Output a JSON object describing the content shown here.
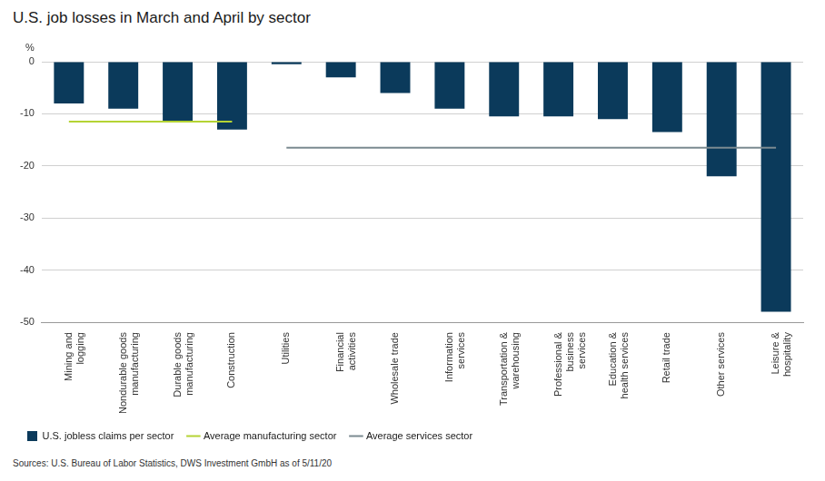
{
  "chart_data": {
    "type": "bar",
    "title": "U.S. job losses in March and April by sector",
    "ylabel": "%",
    "source": "Sources: U.S. Bureau of Labor Statistics, DWS Investment GmbH as of 5/11/20",
    "categories": [
      "Mining and logging",
      "Nondurable goods manufacturing",
      "Durable goods manufacturing",
      "Construction",
      "Utilities",
      "Financial activities",
      "Wholesale trade",
      "Information services",
      "Transportation & warehousing",
      "Professional & business services",
      "Education & health services",
      "Retail trade",
      "Other services",
      "Leisure & hospitality"
    ],
    "series": [
      {
        "name": "U.S. jobless claims per sector",
        "type": "bar",
        "color": "#0b3a5b",
        "values": [
          -8,
          -9,
          -11.5,
          -13,
          -0.5,
          -3,
          -6,
          -9,
          -10.5,
          -10.5,
          -11,
          -13.5,
          -22,
          -48
        ]
      },
      {
        "name": "Average manufacturing sector",
        "type": "line",
        "color": "#b4d334",
        "values": [
          -11.5,
          -11.5,
          -11.5,
          -11.5,
          null,
          null,
          null,
          null,
          null,
          null,
          null,
          null,
          null,
          null
        ]
      },
      {
        "name": "Average services sector",
        "type": "line",
        "color": "#7b8a91",
        "values": [
          null,
          null,
          null,
          null,
          -16.5,
          -16.5,
          -16.5,
          -16.5,
          -16.5,
          -16.5,
          -16.5,
          -16.5,
          -16.5,
          -16.5
        ]
      }
    ],
    "ylim": [
      -50,
      0
    ],
    "yticks": [
      -50,
      -40,
      -30,
      -20,
      -10,
      0
    ],
    "grid": true,
    "legend": "bottom"
  }
}
